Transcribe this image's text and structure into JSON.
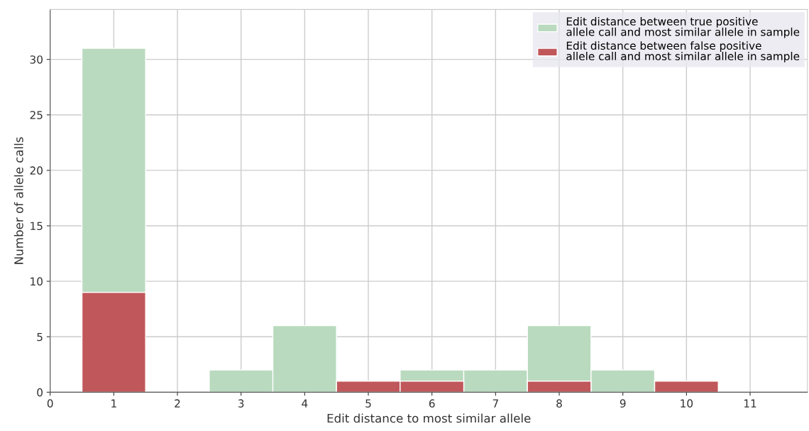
{
  "chart_data": {
    "type": "histogram",
    "xlabel": "Edit distance to most similar allele",
    "ylabel": "Number of allele calls",
    "bins": [
      0.5,
      1.5,
      2.5,
      3.5,
      4.5,
      5.5,
      6.5,
      7.5,
      8.5,
      9.5,
      10.5
    ],
    "series": [
      {
        "name": "Edit distance between true positive\nallele call and most similar allele in sample",
        "color": "#b9dabe",
        "values": [
          31,
          0,
          2,
          6,
          null,
          2,
          2,
          6,
          2,
          0
        ]
      },
      {
        "name": "Edit distance between false positive\nallele call and most similar allele in sample",
        "color": "#c0585b",
        "values": [
          9,
          0,
          0,
          0,
          1,
          1,
          0,
          1,
          0,
          1
        ]
      }
    ],
    "xlim": [
      0,
      11.9
    ],
    "ylim": [
      0,
      34.5
    ],
    "xticks": [
      0,
      1,
      2,
      3,
      4,
      5,
      6,
      7,
      8,
      9,
      10,
      11
    ],
    "yticks": [
      0,
      5,
      10,
      15,
      20,
      25,
      30
    ],
    "grid": true,
    "legend": "top right"
  }
}
